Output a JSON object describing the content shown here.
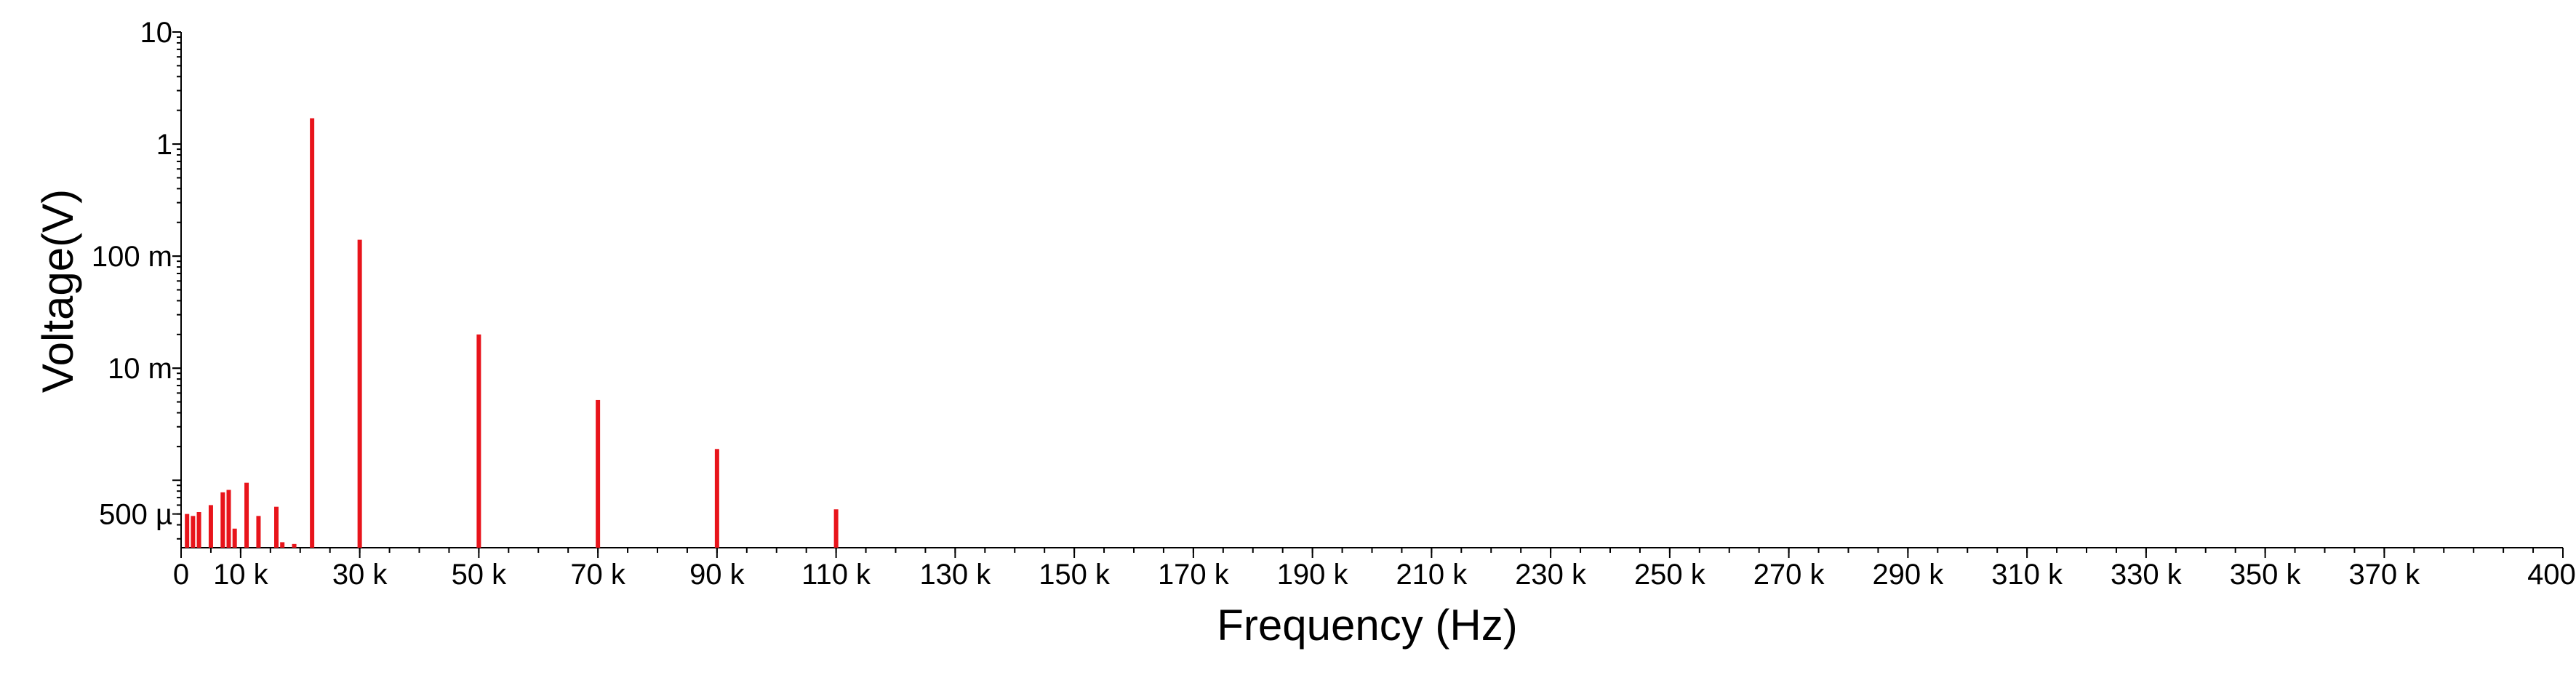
{
  "chart_data": {
    "type": "bar",
    "title": "",
    "xlabel": "Frequency (Hz)",
    "ylabel": "Voltage(V)",
    "x_scale": "linear",
    "y_scale": "log",
    "xlim": [
      0,
      400000
    ],
    "ylim": [
      0.00025,
      10
    ],
    "grid": false,
    "legend": "none",
    "bar_color": "#e8141b",
    "x_ticks": [
      {
        "value": 0,
        "label": "0"
      },
      {
        "value": 10000,
        "label": "10 k"
      },
      {
        "value": 30000,
        "label": "30 k"
      },
      {
        "value": 50000,
        "label": "50 k"
      },
      {
        "value": 70000,
        "label": "70 k"
      },
      {
        "value": 90000,
        "label": "90 k"
      },
      {
        "value": 110000,
        "label": "110 k"
      },
      {
        "value": 130000,
        "label": "130 k"
      },
      {
        "value": 150000,
        "label": "150 k"
      },
      {
        "value": 170000,
        "label": "170 k"
      },
      {
        "value": 190000,
        "label": "190 k"
      },
      {
        "value": 210000,
        "label": "210 k"
      },
      {
        "value": 230000,
        "label": "230 k"
      },
      {
        "value": 250000,
        "label": "250 k"
      },
      {
        "value": 270000,
        "label": "270 k"
      },
      {
        "value": 290000,
        "label": "290 k"
      },
      {
        "value": 310000,
        "label": "310 k"
      },
      {
        "value": 330000,
        "label": "330 k"
      },
      {
        "value": 350000,
        "label": "350 k"
      },
      {
        "value": 370000,
        "label": "370 k"
      },
      {
        "value": 400000,
        "label": "400 k"
      }
    ],
    "x_minor_step": 5000,
    "y_ticks": [
      {
        "value": 10,
        "label": "10"
      },
      {
        "value": 1,
        "label": "1"
      },
      {
        "value": 0.1,
        "label": "100 m"
      },
      {
        "value": 0.01,
        "label": "10 m"
      },
      {
        "value": 0.0005,
        "label": "500 µ"
      }
    ],
    "x": [
      1000,
      2000,
      3000,
      5000,
      7000,
      8000,
      9000,
      11000,
      13000,
      16000,
      17000,
      19000,
      22000,
      30000,
      50000,
      70000,
      90000,
      110000
    ],
    "values": [
      0.0005,
      0.00048,
      0.00052,
      0.0006,
      0.00078,
      0.00082,
      0.00037,
      0.00095,
      0.00048,
      0.00058,
      0.00028,
      0.00027,
      1.7,
      0.14,
      0.02,
      0.0052,
      0.0019,
      0.00055
    ]
  }
}
